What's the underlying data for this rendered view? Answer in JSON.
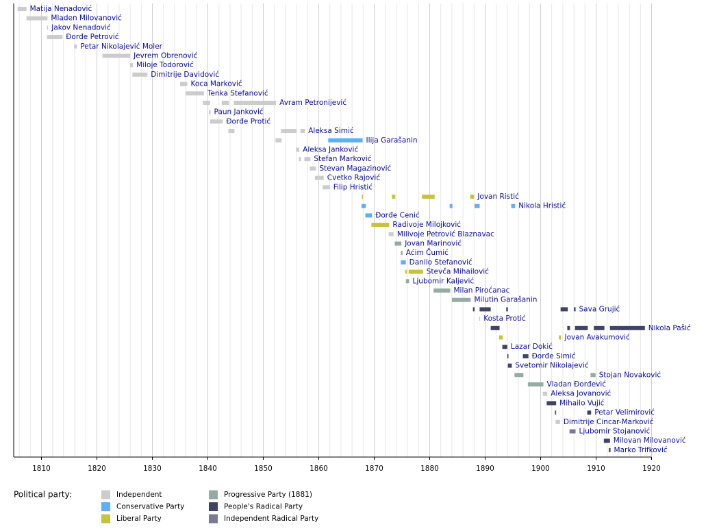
{
  "chart_data": {
    "type": "timeline",
    "xlim": [
      1805,
      1920
    ],
    "xticks": [
      1810,
      1820,
      1830,
      1840,
      1850,
      1860,
      1870,
      1880,
      1890,
      1900,
      1910,
      1920
    ],
    "minor_xticks": [
      1806,
      1808,
      1812,
      1814,
      1816,
      1818,
      1822,
      1824,
      1826,
      1828,
      1832,
      1834,
      1836,
      1838,
      1842,
      1844,
      1846,
      1848,
      1852,
      1854,
      1856,
      1858,
      1862,
      1864,
      1866,
      1868,
      1872,
      1874,
      1876,
      1878,
      1882,
      1884,
      1886,
      1888,
      1892,
      1894,
      1896,
      1898,
      1902,
      1904,
      1906,
      1908,
      1912,
      1914,
      1916,
      1918
    ],
    "legend_title": "Political party:",
    "parties": [
      {
        "name": "Independent",
        "color": "#cccccc"
      },
      {
        "name": "Conservative Party",
        "color": "#5caffa"
      },
      {
        "name": "Liberal Party",
        "color": "#c6c43a"
      },
      {
        "name": "Progressive Party (1881)",
        "color": "#95aba3"
      },
      {
        "name": "People's Radical Party",
        "color": "#414365"
      },
      {
        "name": "Independent Radical Party",
        "color": "#7a7a95"
      }
    ],
    "rows": [
      {
        "name": "Matija Nenadović",
        "terms": [
          {
            "start": 1805.7,
            "end": 1807.3,
            "party": 0
          }
        ]
      },
      {
        "name": "Mladen Milovanović",
        "terms": [
          {
            "start": 1807.3,
            "end": 1811.1,
            "party": 0
          }
        ]
      },
      {
        "name": "Jakov Nenadović",
        "terms": [
          {
            "start": 1811.0,
            "end": 1811.2,
            "party": 0
          }
        ]
      },
      {
        "name": "Đorđe Petrović",
        "terms": [
          {
            "start": 1811.0,
            "end": 1813.8,
            "party": 0
          }
        ]
      },
      {
        "name": "Petar Nikolajević Moler",
        "terms": [
          {
            "start": 1815.9,
            "end": 1816.4,
            "party": 0
          }
        ]
      },
      {
        "name": "Jevrem Obrenović",
        "terms": [
          {
            "start": 1821.0,
            "end": 1826.0,
            "party": 0
          }
        ]
      },
      {
        "name": "Miloje Todorović",
        "terms": [
          {
            "start": 1826.0,
            "end": 1826.5,
            "party": 0
          }
        ]
      },
      {
        "name": "Dimitrije Davidović",
        "terms": [
          {
            "start": 1826.4,
            "end": 1829.1,
            "party": 0
          }
        ]
      },
      {
        "name": "Koca Marković",
        "terms": [
          {
            "start": 1835.0,
            "end": 1836.3,
            "party": 0
          }
        ]
      },
      {
        "name": "Tenka Stefanović",
        "terms": [
          {
            "start": 1836.0,
            "end": 1839.3,
            "party": 0
          }
        ]
      },
      {
        "name": "Avram Petronijević",
        "terms": [
          {
            "start": 1839.1,
            "end": 1840.4,
            "party": 0
          },
          {
            "start": 1842.5,
            "end": 1843.8,
            "party": 0
          },
          {
            "start": 1844.7,
            "end": 1852.3,
            "party": 0
          }
        ]
      },
      {
        "name": "Paun Janković",
        "terms": [
          {
            "start": 1840.2,
            "end": 1840.5,
            "party": 0
          }
        ]
      },
      {
        "name": "Đorđe Protić",
        "terms": [
          {
            "start": 1840.4,
            "end": 1842.7,
            "party": 0
          }
        ]
      },
      {
        "name": "Aleksa Simić",
        "terms": [
          {
            "start": 1843.7,
            "end": 1844.8,
            "party": 0
          },
          {
            "start": 1853.2,
            "end": 1856.0,
            "party": 0
          },
          {
            "start": 1856.7,
            "end": 1857.5,
            "party": 0
          }
        ]
      },
      {
        "name": "Ilija Garašanin",
        "terms": [
          {
            "start": 1852.2,
            "end": 1853.3,
            "party": 0
          },
          {
            "start": 1861.7,
            "end": 1867.9,
            "party": 1
          }
        ]
      },
      {
        "name": "Aleksa Janković",
        "terms": [
          {
            "start": 1855.9,
            "end": 1856.5,
            "party": 0
          }
        ]
      },
      {
        "name": "Stefan Marković",
        "terms": [
          {
            "start": 1856.4,
            "end": 1856.8,
            "party": 0
          },
          {
            "start": 1857.4,
            "end": 1858.5,
            "party": 0
          }
        ]
      },
      {
        "name": "Stevan Magazinović",
        "terms": [
          {
            "start": 1858.4,
            "end": 1859.5,
            "party": 0
          }
        ]
      },
      {
        "name": "Cvetko Rajović",
        "terms": [
          {
            "start": 1859.3,
            "end": 1860.9,
            "party": 0
          }
        ]
      },
      {
        "name": "Filip Hristić",
        "terms": [
          {
            "start": 1860.7,
            "end": 1862.0,
            "party": 0
          }
        ]
      },
      {
        "name": "Jovan Ristić",
        "terms": [
          {
            "start": 1867.8,
            "end": 1868.0,
            "party": 2
          },
          {
            "start": 1873.2,
            "end": 1873.8,
            "party": 2
          },
          {
            "start": 1878.6,
            "end": 1880.9,
            "party": 2
          },
          {
            "start": 1887.3,
            "end": 1888.0,
            "party": 2
          }
        ]
      },
      {
        "name": "Nikola Hristić",
        "terms": [
          {
            "start": 1867.7,
            "end": 1868.5,
            "party": 1
          },
          {
            "start": 1883.6,
            "end": 1884.1,
            "party": 1
          },
          {
            "start": 1888.1,
            "end": 1889.0,
            "party": 1
          },
          {
            "start": 1894.7,
            "end": 1895.4,
            "party": 1
          }
        ]
      },
      {
        "name": "Đorđe Cenić",
        "terms": [
          {
            "start": 1868.4,
            "end": 1869.6,
            "party": 1
          }
        ]
      },
      {
        "name": "Radivoje Milojković",
        "terms": [
          {
            "start": 1869.5,
            "end": 1872.7,
            "party": 2
          }
        ]
      },
      {
        "name": "Milivoje Petrović Blaznavac",
        "terms": [
          {
            "start": 1872.6,
            "end": 1873.5,
            "party": 0
          }
        ]
      },
      {
        "name": "Jovan Marinović",
        "terms": [
          {
            "start": 1873.7,
            "end": 1874.9,
            "party": 3
          }
        ]
      },
      {
        "name": "Aćim Čumić",
        "terms": [
          {
            "start": 1874.8,
            "end": 1875.1,
            "party": 3
          }
        ]
      },
      {
        "name": "Danilo Stefanović",
        "terms": [
          {
            "start": 1874.8,
            "end": 1875.7,
            "party": 1
          }
        ]
      },
      {
        "name": "Stevča Mihailović",
        "terms": [
          {
            "start": 1875.6,
            "end": 1875.9,
            "party": 2
          },
          {
            "start": 1876.2,
            "end": 1878.8,
            "party": 2
          }
        ]
      },
      {
        "name": "Ljubomir Kaljević",
        "terms": [
          {
            "start": 1875.7,
            "end": 1876.3,
            "party": 3
          }
        ]
      },
      {
        "name": "Milan Piroćanac",
        "terms": [
          {
            "start": 1880.7,
            "end": 1883.7,
            "party": 3
          }
        ]
      },
      {
        "name": "Milutin Garašanin",
        "terms": [
          {
            "start": 1884.0,
            "end": 1887.4,
            "party": 3
          }
        ]
      },
      {
        "name": "Sava Grujić",
        "terms": [
          {
            "start": 1887.8,
            "end": 1888.1,
            "party": 4
          },
          {
            "start": 1889.0,
            "end": 1891.0,
            "party": 4
          },
          {
            "start": 1893.8,
            "end": 1894.1,
            "party": 4
          },
          {
            "start": 1903.6,
            "end": 1904.9,
            "party": 4
          },
          {
            "start": 1906.0,
            "end": 1906.3,
            "party": 4
          }
        ]
      },
      {
        "name": "Kosta Protić",
        "terms": [
          {
            "start": 1888.9,
            "end": 1889.1,
            "party": 0
          }
        ]
      },
      {
        "name": "Nikola Pašić",
        "terms": [
          {
            "start": 1891.0,
            "end": 1892.6,
            "party": 4
          },
          {
            "start": 1904.8,
            "end": 1905.3,
            "party": 4
          },
          {
            "start": 1906.2,
            "end": 1908.5,
            "party": 4
          },
          {
            "start": 1909.6,
            "end": 1911.5,
            "party": 4
          },
          {
            "start": 1912.5,
            "end": 1918.8,
            "party": 4
          }
        ]
      },
      {
        "name": "Jovan Avakumović",
        "terms": [
          {
            "start": 1892.5,
            "end": 1893.2,
            "party": 2
          },
          {
            "start": 1903.3,
            "end": 1903.7,
            "party": 2
          }
        ]
      },
      {
        "name": "Lazar Dokić",
        "terms": [
          {
            "start": 1893.1,
            "end": 1894.0,
            "party": 4
          }
        ]
      },
      {
        "name": "Đorđe Simić",
        "terms": [
          {
            "start": 1894.0,
            "end": 1894.2,
            "party": 4
          },
          {
            "start": 1896.8,
            "end": 1897.8,
            "party": 4
          }
        ]
      },
      {
        "name": "Svetomir Nikolajević",
        "terms": [
          {
            "start": 1894.1,
            "end": 1894.8,
            "party": 4
          }
        ]
      },
      {
        "name": "Stojan Novaković",
        "terms": [
          {
            "start": 1895.3,
            "end": 1896.9,
            "party": 3
          },
          {
            "start": 1909.0,
            "end": 1909.9,
            "party": 3
          }
        ]
      },
      {
        "name": "Vladan Đorđević",
        "terms": [
          {
            "start": 1897.7,
            "end": 1900.5,
            "party": 3
          }
        ]
      },
      {
        "name": "Aleksa Jovanović",
        "terms": [
          {
            "start": 1900.4,
            "end": 1901.2,
            "party": 0
          }
        ]
      },
      {
        "name": "Mihailo Vujić",
        "terms": [
          {
            "start": 1901.1,
            "end": 1902.8,
            "party": 4
          }
        ]
      },
      {
        "name": "Petar Velimirović",
        "terms": [
          {
            "start": 1902.6,
            "end": 1902.8,
            "party": 4
          },
          {
            "start": 1908.4,
            "end": 1909.1,
            "party": 4
          }
        ]
      },
      {
        "name": "Dimitrije Cincar-Marković",
        "terms": [
          {
            "start": 1902.7,
            "end": 1903.5,
            "party": 0
          }
        ]
      },
      {
        "name": "Ljubomir Stojanović",
        "terms": [
          {
            "start": 1905.2,
            "end": 1906.3,
            "party": 5
          }
        ]
      },
      {
        "name": "Milovan Milovanović",
        "terms": [
          {
            "start": 1911.4,
            "end": 1912.5,
            "party": 4
          }
        ]
      },
      {
        "name": "Marko Trifković",
        "terms": [
          {
            "start": 1912.3,
            "end": 1912.6,
            "party": 4
          }
        ]
      }
    ]
  }
}
